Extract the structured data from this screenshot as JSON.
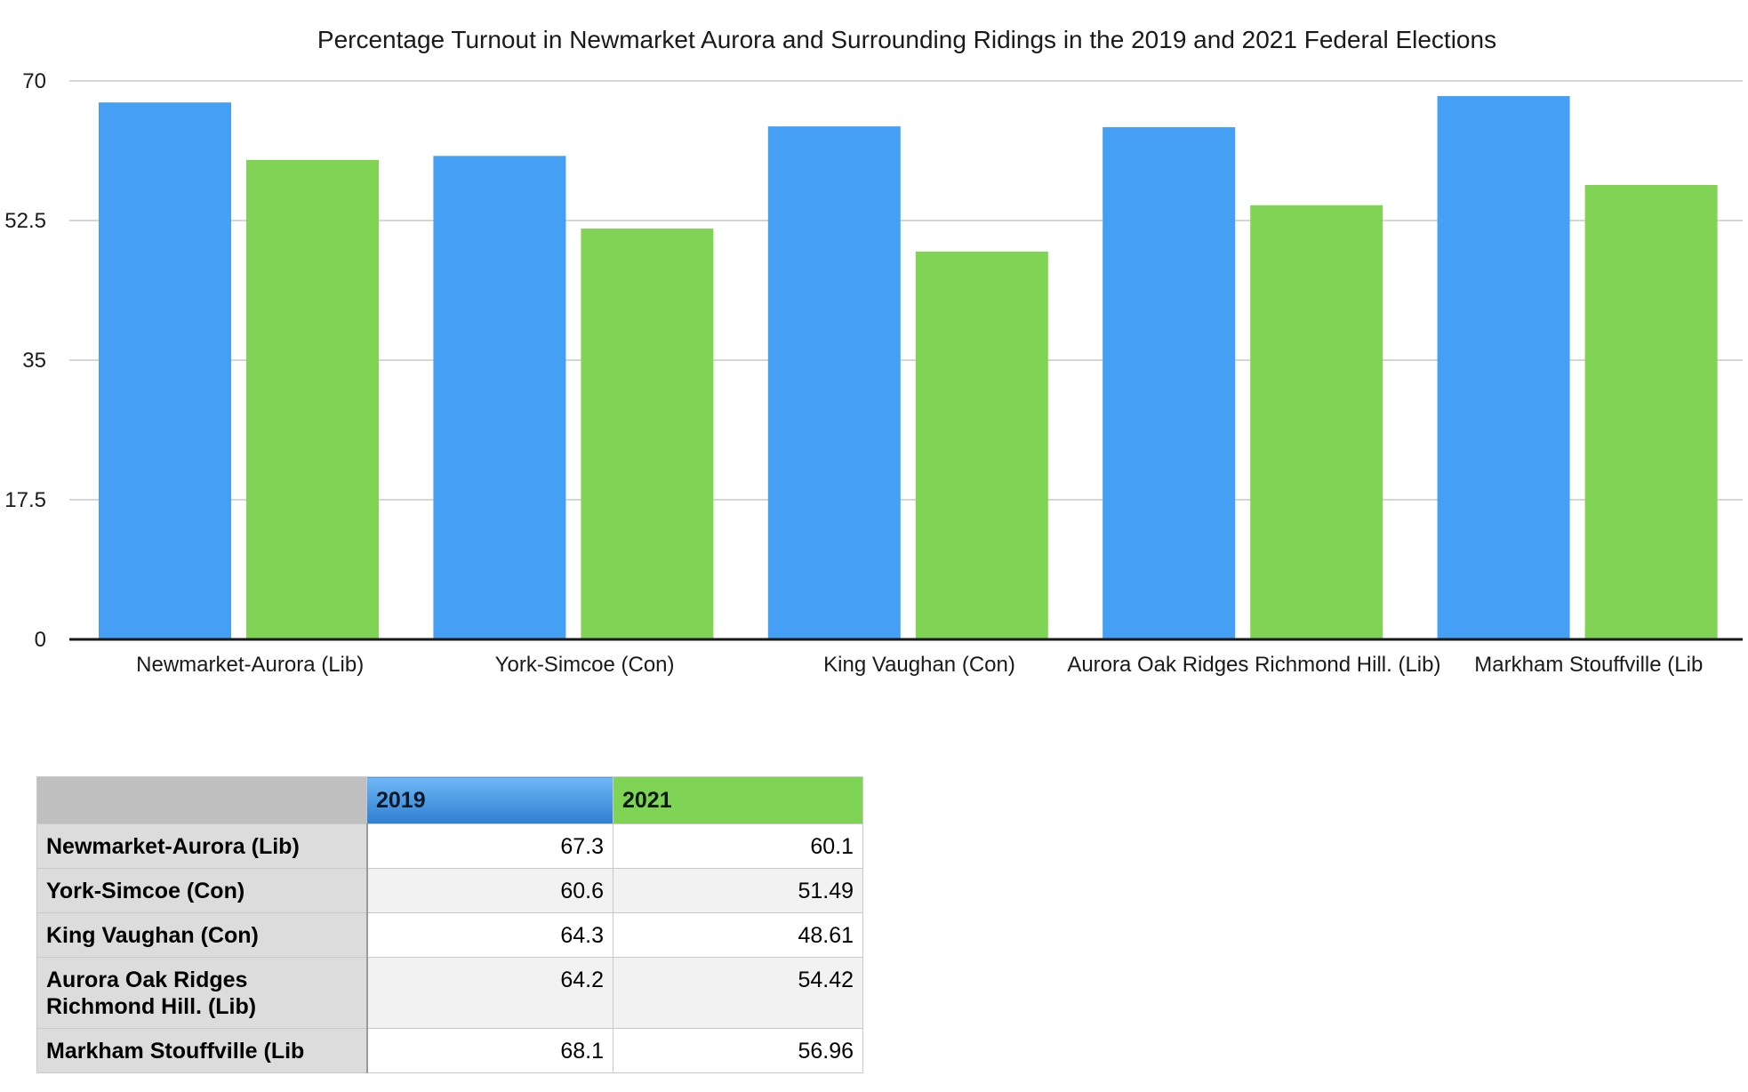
{
  "chart_data": {
    "type": "bar",
    "title": "Percentage Turnout in Newmarket Aurora and Surrounding Ridings in the 2019 and 2021 Federal Elections",
    "categories": [
      "Newmarket-Aurora (Lib)",
      "York-Simcoe (Con)",
      "King Vaughan (Con)",
      "Aurora Oak Ridges Richmond Hill. (Lib)",
      "Markham Stouffville (Lib"
    ],
    "series": [
      {
        "name": "2019",
        "values": [
          67.3,
          60.6,
          64.3,
          64.2,
          68.1
        ],
        "color": "#45a0f5"
      },
      {
        "name": "2021",
        "values": [
          60.1,
          51.49,
          48.61,
          54.42,
          56.96
        ],
        "color": "#81d356"
      }
    ],
    "ylim": [
      0,
      70
    ],
    "yticks": [
      0,
      17.5,
      35,
      52.5,
      70
    ],
    "ytick_labels": [
      "0",
      "17.5",
      "35",
      "52.5",
      "70"
    ],
    "grid": true,
    "xlabel": "",
    "ylabel": ""
  },
  "table": {
    "headers": [
      "2019",
      "2021"
    ],
    "rows": [
      {
        "label": "Newmarket-Aurora (Lib)",
        "values": [
          "67.3",
          "60.1"
        ]
      },
      {
        "label": "York-Simcoe (Con)",
        "values": [
          "60.6",
          "51.49"
        ]
      },
      {
        "label": "King Vaughan (Con)",
        "values": [
          "64.3",
          "48.61"
        ]
      },
      {
        "label": "Aurora Oak Ridges Richmond Hill. (Lib)",
        "values": [
          "64.2",
          "54.42"
        ]
      },
      {
        "label": "Markham Stouffville (Lib",
        "values": [
          "68.1",
          "56.96"
        ]
      }
    ]
  }
}
